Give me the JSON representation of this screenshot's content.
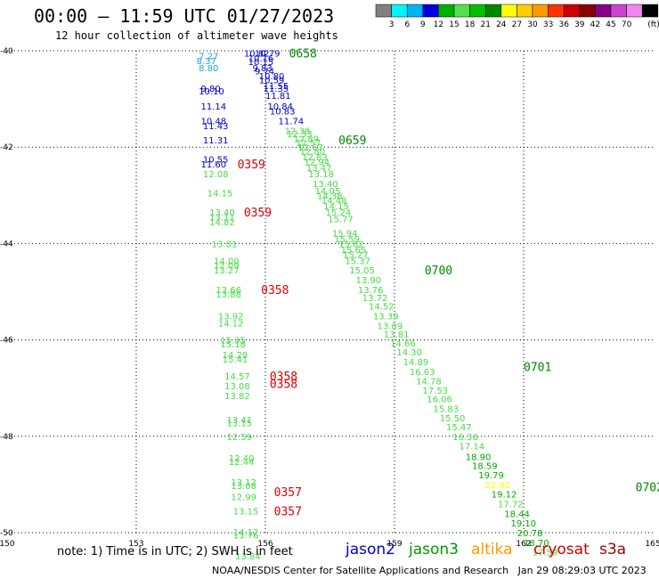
{
  "header": {
    "title": "00:00 — 11:59 UTC 01/27/2023",
    "subtitle": "12 hour collection of altimeter wave heights"
  },
  "footer": {
    "note": "note: 1) Time is in UTC; 2) SWH is in feet",
    "credit": "NOAA/NESDIS Center for Satellite Applications and Research   Jan 29 08:29:03 UTC 2023",
    "satellites": [
      {
        "label": "jason2",
        "color": "#0000cc"
      },
      {
        "label": "jason3",
        "color": "#009900"
      },
      {
        "label": "altika",
        "color": "#ff9900"
      },
      {
        "label": "cryosat",
        "color": "#cc0000"
      },
      {
        "label": "s3a",
        "color": "#990000"
      }
    ]
  },
  "chart_data": {
    "type": "scatter",
    "xlim": [
      150,
      165
    ],
    "ylim": [
      -50,
      -40
    ],
    "x_ticks": [
      "150",
      "153",
      "156",
      "159",
      "162",
      "165"
    ],
    "y_ticks": [
      "-40",
      "-42",
      "-44",
      "-46",
      "-48",
      "-50"
    ],
    "grid": true,
    "colorbar": {
      "unit": "(ft)",
      "labels": [
        "3",
        "6",
        "9",
        "12",
        "15",
        "18",
        "21",
        "24",
        "27",
        "30",
        "33",
        "36",
        "39",
        "42",
        "45",
        "70"
      ],
      "colors": [
        "#808080",
        "#00f5f5",
        "#00b4f0",
        "#0000e0",
        "#00b000",
        "#50e050",
        "#00c000",
        "#008800",
        "#ffff00",
        "#ffcc00",
        "#ff9900",
        "#ff3300",
        "#cc0000",
        "#880000",
        "#880088",
        "#cc44cc",
        "#ee88ee",
        "#000000"
      ]
    },
    "track_labels": [
      {
        "text": "0658",
        "lon": 156.55,
        "lat": -40.05,
        "color": "#008800"
      },
      {
        "text": "0659",
        "lon": 157.7,
        "lat": -41.85,
        "color": "#008800"
      },
      {
        "text": "0700",
        "lon": 159.7,
        "lat": -44.55,
        "color": "#008800"
      },
      {
        "text": "0701",
        "lon": 162.0,
        "lat": -46.55,
        "color": "#008800"
      },
      {
        "text": "0702",
        "lon": 164.6,
        "lat": -49.05,
        "color": "#008800"
      },
      {
        "text": "0359",
        "lon": 155.35,
        "lat": -42.35,
        "color": "#dd0000"
      },
      {
        "text": "0359",
        "lon": 155.5,
        "lat": -43.35,
        "color": "#dd0000"
      },
      {
        "text": "0358",
        "lon": 155.9,
        "lat": -44.95,
        "color": "#dd0000"
      },
      {
        "text": "0358",
        "lon": 156.1,
        "lat": -46.75,
        "color": "#dd0000"
      },
      {
        "text": "0358",
        "lon": 156.1,
        "lat": -46.9,
        "color": "#dd0000"
      },
      {
        "text": "0357",
        "lon": 156.2,
        "lat": -49.15,
        "color": "#dd0000"
      },
      {
        "text": "0357",
        "lon": 156.2,
        "lat": -49.55,
        "color": "#dd0000"
      }
    ],
    "series": [
      {
        "name": "cryosat",
        "color_by_value": true,
        "points": [
          {
            "lon": 154.45,
            "lat": -40.1,
            "v": "7.27"
          },
          {
            "lon": 154.4,
            "lat": -40.2,
            "v": "8.37"
          },
          {
            "lon": 154.45,
            "lat": -40.35,
            "v": "8.80"
          },
          {
            "lon": 154.5,
            "lat": -40.78,
            "v": "9.80"
          },
          {
            "lon": 154.45,
            "lat": -40.83,
            "v": "10.10"
          },
          {
            "lon": 154.5,
            "lat": -41.15,
            "v": "11.14"
          },
          {
            "lon": 154.5,
            "lat": -41.45,
            "v": "10.48"
          },
          {
            "lon": 154.55,
            "lat": -41.55,
            "v": "11.43"
          },
          {
            "lon": 154.55,
            "lat": -41.85,
            "v": "11.31"
          },
          {
            "lon": 154.55,
            "lat": -42.25,
            "v": "10.55"
          },
          {
            "lon": 154.5,
            "lat": -42.35,
            "v": "11.60"
          },
          {
            "lon": 154.55,
            "lat": -42.55,
            "v": "12.08"
          },
          {
            "lon": 154.65,
            "lat": -42.95,
            "v": "14.15"
          },
          {
            "lon": 154.7,
            "lat": -43.35,
            "v": "13.40"
          },
          {
            "lon": 154.7,
            "lat": -43.45,
            "v": "13.11"
          },
          {
            "lon": 154.7,
            "lat": -43.55,
            "v": "14.82"
          },
          {
            "lon": 154.75,
            "lat": -44.0,
            "v": "13.81"
          },
          {
            "lon": 154.8,
            "lat": -44.35,
            "v": "14.00"
          },
          {
            "lon": 154.8,
            "lat": -44.45,
            "v": "12.09"
          },
          {
            "lon": 154.8,
            "lat": -44.55,
            "v": "13.27"
          },
          {
            "lon": 154.85,
            "lat": -44.95,
            "v": "13.66"
          },
          {
            "lon": 154.85,
            "lat": -45.05,
            "v": "13.88"
          },
          {
            "lon": 154.9,
            "lat": -45.5,
            "v": "13.92"
          },
          {
            "lon": 154.9,
            "lat": -45.65,
            "v": "14.12"
          },
          {
            "lon": 154.95,
            "lat": -46.0,
            "v": "15.35"
          },
          {
            "lon": 154.95,
            "lat": -46.08,
            "v": "15.18"
          },
          {
            "lon": 155.0,
            "lat": -46.3,
            "v": "14.29"
          },
          {
            "lon": 155.0,
            "lat": -46.4,
            "v": "15.41"
          },
          {
            "lon": 155.05,
            "lat": -46.75,
            "v": "14.57"
          },
          {
            "lon": 155.05,
            "lat": -46.95,
            "v": "13.08"
          },
          {
            "lon": 155.05,
            "lat": -47.15,
            "v": "13.82"
          },
          {
            "lon": 155.1,
            "lat": -47.65,
            "v": "13.41"
          },
          {
            "lon": 155.1,
            "lat": -47.72,
            "v": "13.15"
          },
          {
            "lon": 155.1,
            "lat": -48.0,
            "v": "12.59"
          },
          {
            "lon": 155.15,
            "lat": -48.45,
            "v": "12.40"
          },
          {
            "lon": 155.15,
            "lat": -48.52,
            "v": "12.44"
          },
          {
            "lon": 155.2,
            "lat": -48.95,
            "v": "13.12"
          },
          {
            "lon": 155.2,
            "lat": -49.02,
            "v": "13.08"
          },
          {
            "lon": 155.2,
            "lat": -49.25,
            "v": "12.99"
          },
          {
            "lon": 155.25,
            "lat": -49.55,
            "v": "13.15"
          },
          {
            "lon": 155.25,
            "lat": -49.98,
            "v": "14.12"
          },
          {
            "lon": 155.25,
            "lat": -50.05,
            "v": "13.76"
          },
          {
            "lon": 155.3,
            "lat": -50.48,
            "v": "13.84"
          }
        ]
      },
      {
        "name": "jason3",
        "color_by_value": true,
        "points": [
          {
            "lon": 155.5,
            "lat": -40.05,
            "v": "10.82"
          },
          {
            "lon": 155.75,
            "lat": -40.05,
            "v": "10.79"
          },
          {
            "lon": 155.6,
            "lat": -40.15,
            "v": "10.16"
          },
          {
            "lon": 155.6,
            "lat": -40.22,
            "v": "10.15"
          },
          {
            "lon": 155.7,
            "lat": -40.35,
            "v": "9.83"
          },
          {
            "lon": 155.75,
            "lat": -40.42,
            "v": "9.74"
          },
          {
            "lon": 155.85,
            "lat": -40.52,
            "v": "10.80"
          },
          {
            "lon": 155.85,
            "lat": -40.6,
            "v": "10.59"
          },
          {
            "lon": 155.95,
            "lat": -40.72,
            "v": "11.55"
          },
          {
            "lon": 155.95,
            "lat": -40.78,
            "v": "11.35"
          },
          {
            "lon": 156.0,
            "lat": -40.92,
            "v": "11.81"
          },
          {
            "lon": 156.05,
            "lat": -41.15,
            "v": "10.84"
          },
          {
            "lon": 156.1,
            "lat": -41.25,
            "v": "10.83"
          },
          {
            "lon": 156.3,
            "lat": -41.45,
            "v": "11.74"
          },
          {
            "lon": 156.45,
            "lat": -41.65,
            "v": "12.38"
          },
          {
            "lon": 156.5,
            "lat": -41.72,
            "v": "12.33"
          },
          {
            "lon": 156.65,
            "lat": -41.82,
            "v": "12.89"
          },
          {
            "lon": 156.7,
            "lat": -41.9,
            "v": "12.57"
          },
          {
            "lon": 156.75,
            "lat": -42.0,
            "v": "12.67"
          },
          {
            "lon": 156.8,
            "lat": -42.08,
            "v": "12.80"
          },
          {
            "lon": 156.85,
            "lat": -42.2,
            "v": "12.83"
          },
          {
            "lon": 156.9,
            "lat": -42.3,
            "v": "12.94"
          },
          {
            "lon": 156.95,
            "lat": -42.42,
            "v": "13.47"
          },
          {
            "lon": 157.0,
            "lat": -42.55,
            "v": "13.18"
          },
          {
            "lon": 157.1,
            "lat": -42.75,
            "v": "13.40"
          },
          {
            "lon": 157.15,
            "lat": -42.9,
            "v": "14.05"
          },
          {
            "lon": 157.2,
            "lat": -43.0,
            "v": "14.38"
          },
          {
            "lon": 157.3,
            "lat": -43.1,
            "v": "14.48"
          },
          {
            "lon": 157.35,
            "lat": -43.22,
            "v": "14.15"
          },
          {
            "lon": 157.4,
            "lat": -43.35,
            "v": "15.24"
          },
          {
            "lon": 157.45,
            "lat": -43.48,
            "v": "15.77"
          },
          {
            "lon": 157.55,
            "lat": -43.78,
            "v": "15.94"
          },
          {
            "lon": 157.6,
            "lat": -43.9,
            "v": "15.59"
          },
          {
            "lon": 157.7,
            "lat": -44.0,
            "v": "15.82"
          },
          {
            "lon": 157.75,
            "lat": -44.12,
            "v": "15.65"
          },
          {
            "lon": 157.8,
            "lat": -44.22,
            "v": "15.27"
          },
          {
            "lon": 157.85,
            "lat": -44.35,
            "v": "15.37"
          },
          {
            "lon": 157.95,
            "lat": -44.55,
            "v": "15.05"
          },
          {
            "lon": 158.1,
            "lat": -44.75,
            "v": "13.90"
          },
          {
            "lon": 158.15,
            "lat": -44.95,
            "v": "13.76"
          },
          {
            "lon": 158.25,
            "lat": -45.12,
            "v": "13.72"
          },
          {
            "lon": 158.4,
            "lat": -45.3,
            "v": "14.52"
          },
          {
            "lon": 158.5,
            "lat": -45.5,
            "v": "13.39"
          },
          {
            "lon": 158.6,
            "lat": -45.7,
            "v": "13.09"
          },
          {
            "lon": 158.75,
            "lat": -45.88,
            "v": "13.81"
          },
          {
            "lon": 158.9,
            "lat": -46.06,
            "v": "14.66"
          },
          {
            "lon": 159.05,
            "lat": -46.25,
            "v": "14.30"
          },
          {
            "lon": 159.2,
            "lat": -46.45,
            "v": "14.89"
          },
          {
            "lon": 159.35,
            "lat": -46.65,
            "v": "16.63"
          },
          {
            "lon": 159.5,
            "lat": -46.85,
            "v": "14.78"
          },
          {
            "lon": 159.65,
            "lat": -47.04,
            "v": "17.53"
          },
          {
            "lon": 159.75,
            "lat": -47.22,
            "v": "16.06"
          },
          {
            "lon": 159.9,
            "lat": -47.42,
            "v": "15.83"
          },
          {
            "lon": 160.05,
            "lat": -47.62,
            "v": "15.50"
          },
          {
            "lon": 160.2,
            "lat": -47.8,
            "v": "15.47"
          },
          {
            "lon": 160.35,
            "lat": -48.0,
            "v": "16.36"
          },
          {
            "lon": 160.5,
            "lat": -48.2,
            "v": "17.14"
          },
          {
            "lon": 160.65,
            "lat": -48.42,
            "v": "18.90"
          },
          {
            "lon": 160.8,
            "lat": -48.6,
            "v": "18.59"
          },
          {
            "lon": 160.95,
            "lat": -48.8,
            "v": "19.79"
          },
          {
            "lon": 161.1,
            "lat": -49.0,
            "v": "22.82"
          },
          {
            "lon": 161.25,
            "lat": -49.2,
            "v": "19.12"
          },
          {
            "lon": 161.4,
            "lat": -49.4,
            "v": "17.72"
          },
          {
            "lon": 161.55,
            "lat": -49.6,
            "v": "18.44"
          },
          {
            "lon": 161.7,
            "lat": -49.8,
            "v": "19.10"
          },
          {
            "lon": 161.85,
            "lat": -50.0,
            "v": "20.78"
          },
          {
            "lon": 162.0,
            "lat": -50.2,
            "v": "18.70"
          },
          {
            "lon": 162.2,
            "lat": -50.4,
            "v": "17.59"
          }
        ]
      }
    ]
  }
}
